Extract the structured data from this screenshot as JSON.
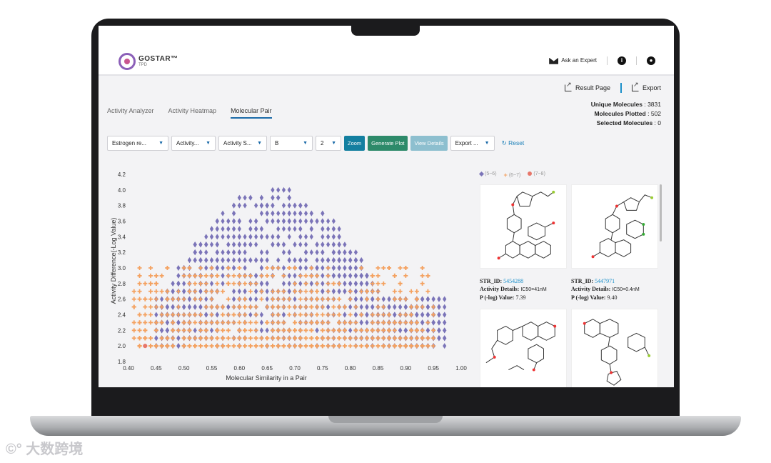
{
  "header": {
    "brand": "GOSTAR™",
    "brand_sub": "TPD",
    "ask_expert": "Ask an Expert"
  },
  "top_links": {
    "result_page": "Result Page",
    "export": "Export"
  },
  "tabs": [
    {
      "label": "Activity Analyzer",
      "active": false
    },
    {
      "label": "Activity Heatmap",
      "active": false
    },
    {
      "label": "Molecular Pair",
      "active": true
    }
  ],
  "stats": {
    "unique_label": "Unique Molecules",
    "unique_value": ": 3831",
    "plotted_label": "Molecules Plotted",
    "plotted_value": ": 502",
    "selected_label": "Selected Molecules",
    "selected_value": ": 0"
  },
  "controls": {
    "target": "Estrogen re...",
    "activity": "Activity...",
    "activity_s": "Activity S...",
    "b_value": "B",
    "n_value": "2",
    "zoom": "Zoom",
    "generate": "Generate Plot",
    "view": "View Details",
    "export": "Export ...",
    "reset": "Reset"
  },
  "legend": [
    "(5~6)",
    "(6~7)",
    "(7~8)"
  ],
  "colors": {
    "purple": "#7b74b8",
    "orange": "#f4a261",
    "red": "#e7766a"
  },
  "molecules": [
    {
      "id_label": "STR_ID:",
      "id": "5454288",
      "details_label": "Activity Details:",
      "details": "IC50=41nM",
      "plog_label": "P (-log) Value:",
      "plog": "7.39"
    },
    {
      "id_label": "STR_ID:",
      "id": "5447971",
      "details_label": "Activity Details:",
      "details": "IC50=0.4nM",
      "plog_label": "P (-log) Value:",
      "plog": "9.40"
    }
  ],
  "chart_data": {
    "type": "scatter",
    "xlabel": "Molecular Similarity in a Pair",
    "ylabel": "Activity Difference(-Log Value)",
    "xlim": [
      0.4,
      1.0
    ],
    "ylim": [
      1.8,
      4.2
    ],
    "xticks": [
      "0.40",
      "0.45",
      "0.50",
      "0.55",
      "0.60",
      "0.65",
      "0.70",
      "0.75",
      "0.80",
      "0.85",
      "0.90",
      "0.95",
      "1.00"
    ],
    "yticks": [
      "1.8",
      "2.0",
      "2.2",
      "2.4",
      "2.6",
      "2.8",
      "3.0",
      "3.2",
      "3.4",
      "3.6",
      "3.8",
      "4.0",
      "4.2"
    ],
    "series": [
      {
        "name": "(5~6)",
        "marker": "diamond",
        "x_range": [
          0.45,
          0.97
        ],
        "y_range": [
          2.0,
          4.0
        ]
      },
      {
        "name": "(6~7)",
        "marker": "plus",
        "x_range": [
          0.41,
          0.95
        ],
        "y_range": [
          2.0,
          3.0
        ]
      },
      {
        "name": "(7~8)",
        "marker": "circle",
        "x": [
          0.43
        ],
        "y": [
          2.0
        ]
      }
    ]
  }
}
